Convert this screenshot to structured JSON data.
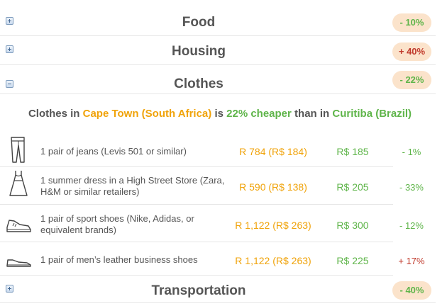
{
  "categories": [
    {
      "title": "Food",
      "badge": "- 10%",
      "state": "collapsed"
    },
    {
      "title": "Housing",
      "badge": "+ 40%",
      "state": "collapsed"
    },
    {
      "title": "Clothes",
      "badge": "- 22%",
      "state": "expanded"
    },
    {
      "title": "Transportation",
      "badge": "- 40%",
      "state": "collapsed"
    }
  ],
  "summary": {
    "part1": "Clothes in ",
    "city1": "Cape Town (South Africa)",
    "part2": " is ",
    "pct": "22% cheaper",
    "part3": " than in ",
    "city2": "Curitiba (Brazil)"
  },
  "items": [
    {
      "icon": "jeans-icon",
      "name": "1 pair of jeans (Levis 501 or similar)",
      "price_city1": "R 784 (R$ 184)",
      "price_city2": "R$ 185",
      "diff": "- 1%"
    },
    {
      "icon": "dress-icon",
      "name": "1 summer dress in a High Street Store (Zara, H&M or similar retailers)",
      "price_city1": "R 590 (R$ 138)",
      "price_city2": "R$ 205",
      "diff": "- 33%"
    },
    {
      "icon": "sport-shoe-icon",
      "name": "1 pair of sport shoes (Nike, Adidas, or equivalent brands)",
      "price_city1": "R 1,122 (R$ 263)",
      "price_city2": "R$ 300",
      "diff": "- 12%"
    },
    {
      "icon": "business-shoe-icon",
      "name": "1 pair of men’s leather business shoes",
      "price_city1": "R 1,122 (R$ 263)",
      "price_city2": "R$ 225",
      "diff": "+ 17%"
    }
  ],
  "colors": {
    "cheaper": "#5fb54a",
    "pricier": "#c0392b",
    "city1": "#f0a30a",
    "badge_bg": "#fbe3cb"
  }
}
